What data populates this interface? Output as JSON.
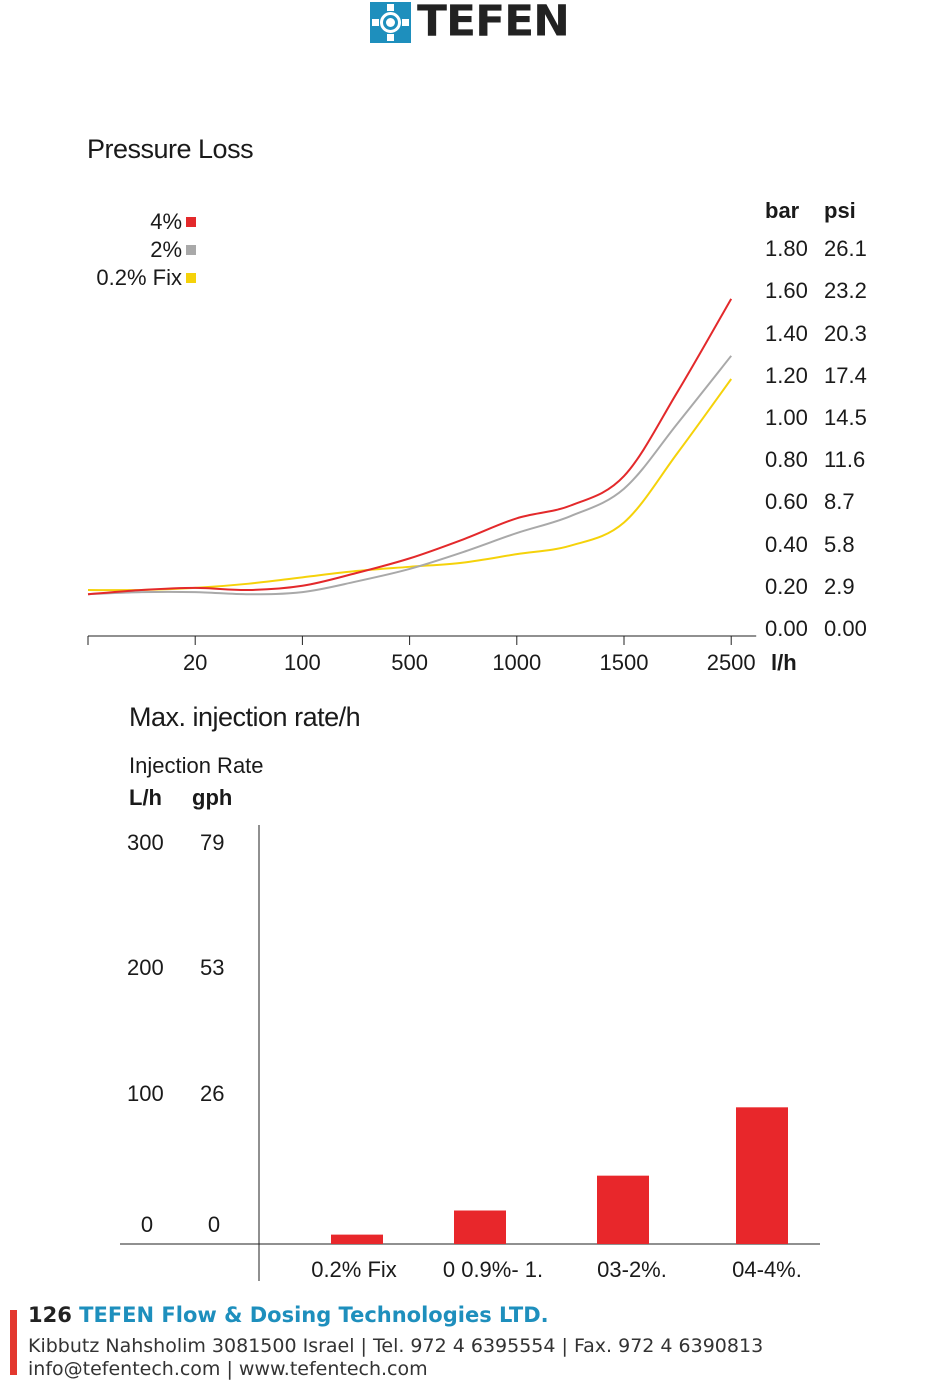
{
  "brand": {
    "logo_text": "TEFEN",
    "colors": {
      "blue": "#1e8fbd",
      "red": "#e3382f"
    }
  },
  "chart_data": [
    {
      "type": "line",
      "title": "Pressure Loss",
      "x_unit": "l/h",
      "x_ticks": [
        "20",
        "100",
        "500",
        "1000",
        "1500",
        "2500"
      ],
      "y_units": [
        "bar",
        "psi"
      ],
      "y_ticks_bar": [
        "0.00",
        "0.20",
        "0.40",
        "0.60",
        "0.80",
        "1.00",
        "1.20",
        "1.40",
        "1.60",
        "1.80"
      ],
      "y_ticks_psi": [
        "0.00",
        "2.9",
        "5.8",
        "8.7",
        "11.6",
        "14.5",
        "17.4",
        "20.3",
        "23.2",
        "26.1"
      ],
      "ylim": [
        0,
        1.8
      ],
      "x_tick_index_note": "x values are positions on the categorical tick scale (0 = axis start, 1 = 20, 2 = 100, 3 = 500, 4 = 1000, 5 = 1500, 6 = 2500)",
      "series": [
        {
          "name": "4%",
          "color": "#e3292b",
          "x": [
            0,
            0.5,
            1,
            1.5,
            2,
            2.5,
            3,
            3.5,
            4,
            4.5,
            5,
            5.5,
            6
          ],
          "y": [
            0.16,
            0.18,
            0.19,
            0.18,
            0.2,
            0.26,
            0.33,
            0.42,
            0.52,
            0.58,
            0.72,
            1.12,
            1.56
          ]
        },
        {
          "name": "2%",
          "color": "#a9a9a9",
          "x": [
            0,
            0.5,
            1,
            1.5,
            2,
            2.5,
            3,
            3.5,
            4,
            4.5,
            5,
            5.5,
            6
          ],
          "y": [
            0.16,
            0.17,
            0.17,
            0.16,
            0.17,
            0.22,
            0.28,
            0.36,
            0.45,
            0.53,
            0.66,
            0.97,
            1.29
          ]
        },
        {
          "name": "0.2% Fix",
          "color": "#f5d20a",
          "x": [
            0,
            0.5,
            1,
            1.5,
            2,
            2.5,
            3,
            3.5,
            4,
            4.5,
            5,
            5.5,
            6
          ],
          "y": [
            0.18,
            0.18,
            0.19,
            0.21,
            0.24,
            0.27,
            0.29,
            0.31,
            0.35,
            0.39,
            0.5,
            0.83,
            1.18
          ]
        }
      ],
      "legend_position": "top-left"
    },
    {
      "type": "bar",
      "title": "Max. injection rate/h",
      "ylabel": "Injection Rate",
      "y_units": [
        "L/h",
        "gph"
      ],
      "y_ticks_lh": [
        "0",
        "100",
        "200",
        "300"
      ],
      "y_ticks_gph": [
        "0",
        "26",
        "53",
        "79"
      ],
      "ylim": [
        0,
        300
      ],
      "categories": [
        "0.2% Fix",
        "0 0.9%- 1.",
        "03-2%.",
        "04-4%."
      ],
      "values": [
        7,
        25,
        51,
        102
      ],
      "color": "#e8272b"
    }
  ],
  "footer": {
    "page_number": "126",
    "company": "TEFEN Flow & Dosing Technologies LTD.",
    "address_line": "Kibbutz Nahsholim 3081500 Israel | Tel. 972 4 6395554 | Fax. 972 4 6390813",
    "contact_line": "info@tefentech.com | www.tefentech.com"
  }
}
